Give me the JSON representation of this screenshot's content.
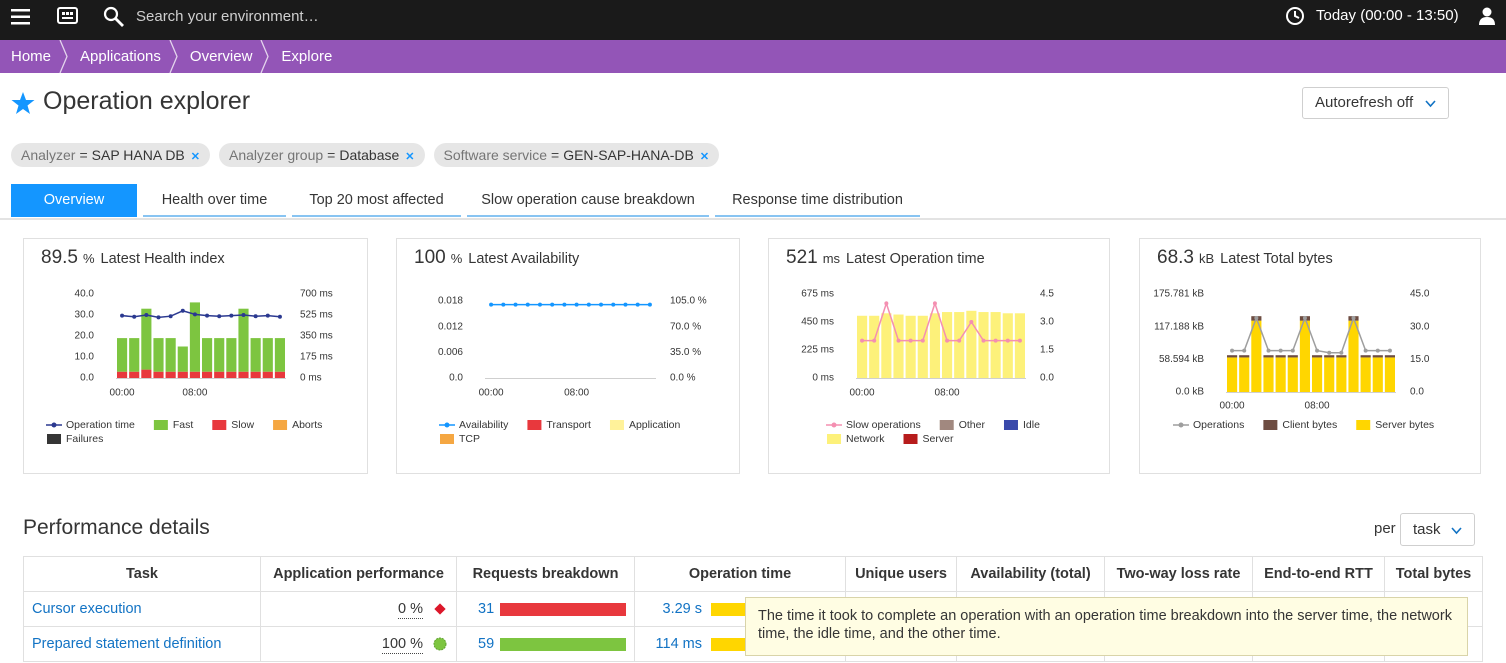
{
  "topbar": {
    "search_placeholder": "Search your environment…",
    "timeframe": "Today (00:00 - 13:50)"
  },
  "breadcrumb": [
    "Home",
    "Applications",
    "Overview",
    "Explore"
  ],
  "header": {
    "title": "Operation explorer",
    "autorefresh": "Autorefresh off"
  },
  "filters": [
    {
      "key": "Analyzer",
      "op": "=",
      "value": "SAP HANA DB"
    },
    {
      "key": "Analyzer group",
      "op": "=",
      "value": "Database"
    },
    {
      "key": "Software service",
      "op": "=",
      "value": "GEN-SAP-HANA-DB"
    }
  ],
  "tabs": [
    "Overview",
    "Health over time",
    "Top 20 most affected",
    "Slow operation cause breakdown",
    "Response time distribution"
  ],
  "cards": [
    {
      "value": 89.5,
      "unit": "%",
      "label": "Latest Health index",
      "chart": {
        "type": "bar",
        "categories": [
          "00:00",
          null,
          null,
          null,
          null,
          null,
          "08:00",
          null,
          null,
          null,
          null,
          null,
          null,
          null
        ],
        "ylim": [
          0,
          40
        ],
        "yticks": [
          {
            "value": 0,
            "label": "0.0"
          },
          {
            "value": 10,
            "label": "10.0"
          },
          {
            "value": 20,
            "label": "20.0"
          },
          {
            "value": 30,
            "label": "30.0"
          },
          {
            "value": 40,
            "label": "40.0"
          }
        ],
        "y2lim": [
          0,
          700
        ],
        "y2ticks": [
          {
            "value": 0,
            "label": "0 ms"
          },
          {
            "value": 175,
            "label": "175 ms"
          },
          {
            "value": 350,
            "label": "350 ms"
          },
          {
            "value": 525,
            "label": "525 ms"
          },
          {
            "value": 700,
            "label": "700 ms"
          }
        ],
        "series": [
          {
            "name": "Operation time",
            "type": "line",
            "axis": "y2",
            "color": "#2b3990",
            "values": [
              520,
              510,
              525,
              505,
              515,
              560,
              530,
              520,
              515,
              520,
              525,
              515,
              520,
              510
            ]
          },
          {
            "name": "Fast",
            "type": "bar",
            "color": "#7dc540",
            "values": [
              16,
              16,
              29,
              16,
              16,
              12,
              33,
              16,
              16,
              16,
              30,
              16,
              16,
              16
            ]
          },
          {
            "name": "Slow",
            "type": "bar",
            "color": "#e8383d",
            "values": [
              3,
              3,
              4,
              3,
              3,
              3,
              3,
              3,
              3,
              3,
              3,
              3,
              3,
              3
            ]
          },
          {
            "name": "Aborts",
            "type": "bar",
            "color": "#f5a742",
            "values": [
              0,
              0,
              0,
              0,
              0,
              0,
              0,
              0,
              0,
              0,
              0,
              0,
              0,
              0
            ]
          },
          {
            "name": "Failures",
            "type": "bar",
            "color": "#353535",
            "values": [
              0,
              0,
              0,
              0,
              0,
              0,
              0,
              0,
              0,
              0,
              0,
              0,
              0,
              0
            ]
          }
        ]
      }
    },
    {
      "value": 100,
      "unit": "%",
      "label": "Latest Availability",
      "chart": {
        "type": "bar",
        "categories": [
          "00:00",
          null,
          null,
          null,
          null,
          null,
          null,
          "08:00",
          null,
          null,
          null,
          null,
          null,
          null
        ],
        "ylim": [
          0,
          0.018
        ],
        "yticks": [
          {
            "value": 0,
            "label": "0.0"
          },
          0.006,
          0.012,
          0.018
        ],
        "y2lim": [
          0,
          105
        ],
        "y2ticks": [
          {
            "value": 0,
            "label": "0.0 %"
          },
          {
            "value": 35,
            "label": "35.0 %"
          },
          {
            "value": 70,
            "label": "70.0 %"
          },
          {
            "value": 105,
            "label": "105.0 %"
          }
        ],
        "series": [
          {
            "name": "Availability",
            "type": "line",
            "axis": "y2",
            "color": "#1496ff",
            "values": [
              100,
              100,
              100,
              100,
              100,
              100,
              100,
              100,
              100,
              100,
              100,
              100,
              100,
              100
            ]
          },
          {
            "name": "Transport",
            "type": "bar",
            "color": "#e8383d",
            "values": [
              0,
              0,
              0,
              0,
              0,
              0,
              0,
              0,
              0,
              0,
              0,
              0,
              0,
              0
            ]
          },
          {
            "name": "Application",
            "type": "bar",
            "color": "#fff29a",
            "values": [
              0,
              0,
              0,
              0,
              0,
              0,
              0,
              0,
              0,
              0,
              0,
              0,
              0,
              0
            ]
          },
          {
            "name": "TCP",
            "type": "bar",
            "color": "#f5a742",
            "values": [
              0,
              0,
              0,
              0,
              0,
              0,
              0,
              0,
              0,
              0,
              0,
              0,
              0,
              0
            ]
          }
        ]
      }
    },
    {
      "value": 521,
      "unit": "ms",
      "label": "Latest Operation time",
      "chart": {
        "type": "bar",
        "categories": [
          "00:00",
          null,
          null,
          null,
          null,
          null,
          null,
          "08:00",
          null,
          null,
          null,
          null,
          null,
          null
        ],
        "ylim": [
          0,
          675
        ],
        "yticks": [
          {
            "value": 0,
            "label": "0 ms"
          },
          {
            "value": 225,
            "label": "225 ms"
          },
          {
            "value": 450,
            "label": "450 ms"
          },
          {
            "value": 675,
            "label": "675 ms"
          }
        ],
        "y2lim": [
          0,
          4.5
        ],
        "y2ticks": [
          {
            "value": 0,
            "label": "0.0"
          },
          1.5,
          {
            "value": 3,
            "label": "3.0"
          },
          4.5
        ],
        "series": [
          {
            "name": "Slow operations",
            "type": "line",
            "axis": "y2",
            "color": "#f48fb1",
            "values": [
              2,
              2,
              4,
              2,
              2,
              2,
              4,
              2,
              2,
              3,
              2,
              2,
              2,
              2
            ]
          },
          {
            "name": "Other",
            "type": "bar",
            "color": "#a1887f",
            "values": [
              0,
              0,
              0,
              0,
              0,
              0,
              0,
              0,
              0,
              0,
              0,
              0,
              0,
              0
            ]
          },
          {
            "name": "Idle",
            "type": "bar",
            "color": "#3949ab",
            "values": [
              0,
              0,
              0,
              0,
              0,
              0,
              0,
              0,
              0,
              0,
              0,
              0,
              0,
              0
            ]
          },
          {
            "name": "Network",
            "type": "bar",
            "color": "#fdf17a",
            "values": [
              500,
              500,
              520,
              510,
              500,
              500,
              520,
              530,
              530,
              540,
              530,
              530,
              520,
              520
            ]
          },
          {
            "name": "Server",
            "type": "bar",
            "color": "#b71c1c",
            "values": [
              0,
              0,
              0,
              0,
              0,
              0,
              0,
              0,
              0,
              0,
              0,
              0,
              0,
              0
            ]
          }
        ]
      }
    },
    {
      "value": 68.3,
      "unit": "kB",
      "label": "Latest Total bytes",
      "chart": {
        "type": "bar",
        "categories": [
          "00:00",
          null,
          null,
          null,
          null,
          null,
          null,
          "08:00",
          null,
          null,
          null,
          null,
          null,
          null
        ],
        "ylim": [
          0,
          175.781
        ],
        "yticks": [
          {
            "value": 0,
            "label": "0.0 kB"
          },
          {
            "value": 58.594,
            "label": "58.594 kB"
          },
          {
            "value": 117.188,
            "label": "117.188 kB"
          },
          {
            "value": 175.781,
            "label": "175.781 kB"
          }
        ],
        "y2lim": [
          0,
          45
        ],
        "y2ticks": [
          {
            "value": 0,
            "label": "0.0"
          },
          {
            "value": 15,
            "label": "15.0"
          },
          {
            "value": 30,
            "label": "30.0"
          },
          {
            "value": 45,
            "label": "45.0"
          }
        ],
        "series": [
          {
            "name": "Operations",
            "type": "line",
            "axis": "y2",
            "color": "#9e9e9e",
            "values": [
              19,
              19,
              34,
              19,
              19,
              19,
              34,
              19,
              18,
              18,
              34,
              19,
              19,
              19
            ]
          },
          {
            "name": "Client bytes",
            "type": "bar",
            "color": "#6d4c41",
            "values": [
              4,
              4,
              8,
              4,
              4,
              4,
              8,
              4,
              4,
              4,
              8,
              4,
              4,
              4
            ]
          },
          {
            "name": "Server bytes",
            "type": "bar",
            "color": "#ffd600",
            "values": [
              62,
              62,
              128,
              62,
              62,
              62,
              128,
              62,
              62,
              62,
              128,
              62,
              62,
              62
            ]
          }
        ]
      }
    }
  ],
  "performance": {
    "title": "Performance details",
    "per_label": "per",
    "per_value": "task",
    "columns": [
      "Task",
      "Application performance",
      "Requests breakdown",
      "Operation time",
      "Unique users",
      "Availability (total)",
      "Two-way loss rate",
      "End-to-end RTT",
      "Total bytes"
    ],
    "rows": [
      [
        "Cursor execution",
        "0 %",
        "31",
        "3.29 s"
      ],
      [
        "Prepared statement definition",
        "100 %",
        "59",
        "114 ms"
      ]
    ]
  },
  "tooltip": "The time it took to complete an operation with an operation time breakdown into the server time, the network time, the idle time, and the other time."
}
